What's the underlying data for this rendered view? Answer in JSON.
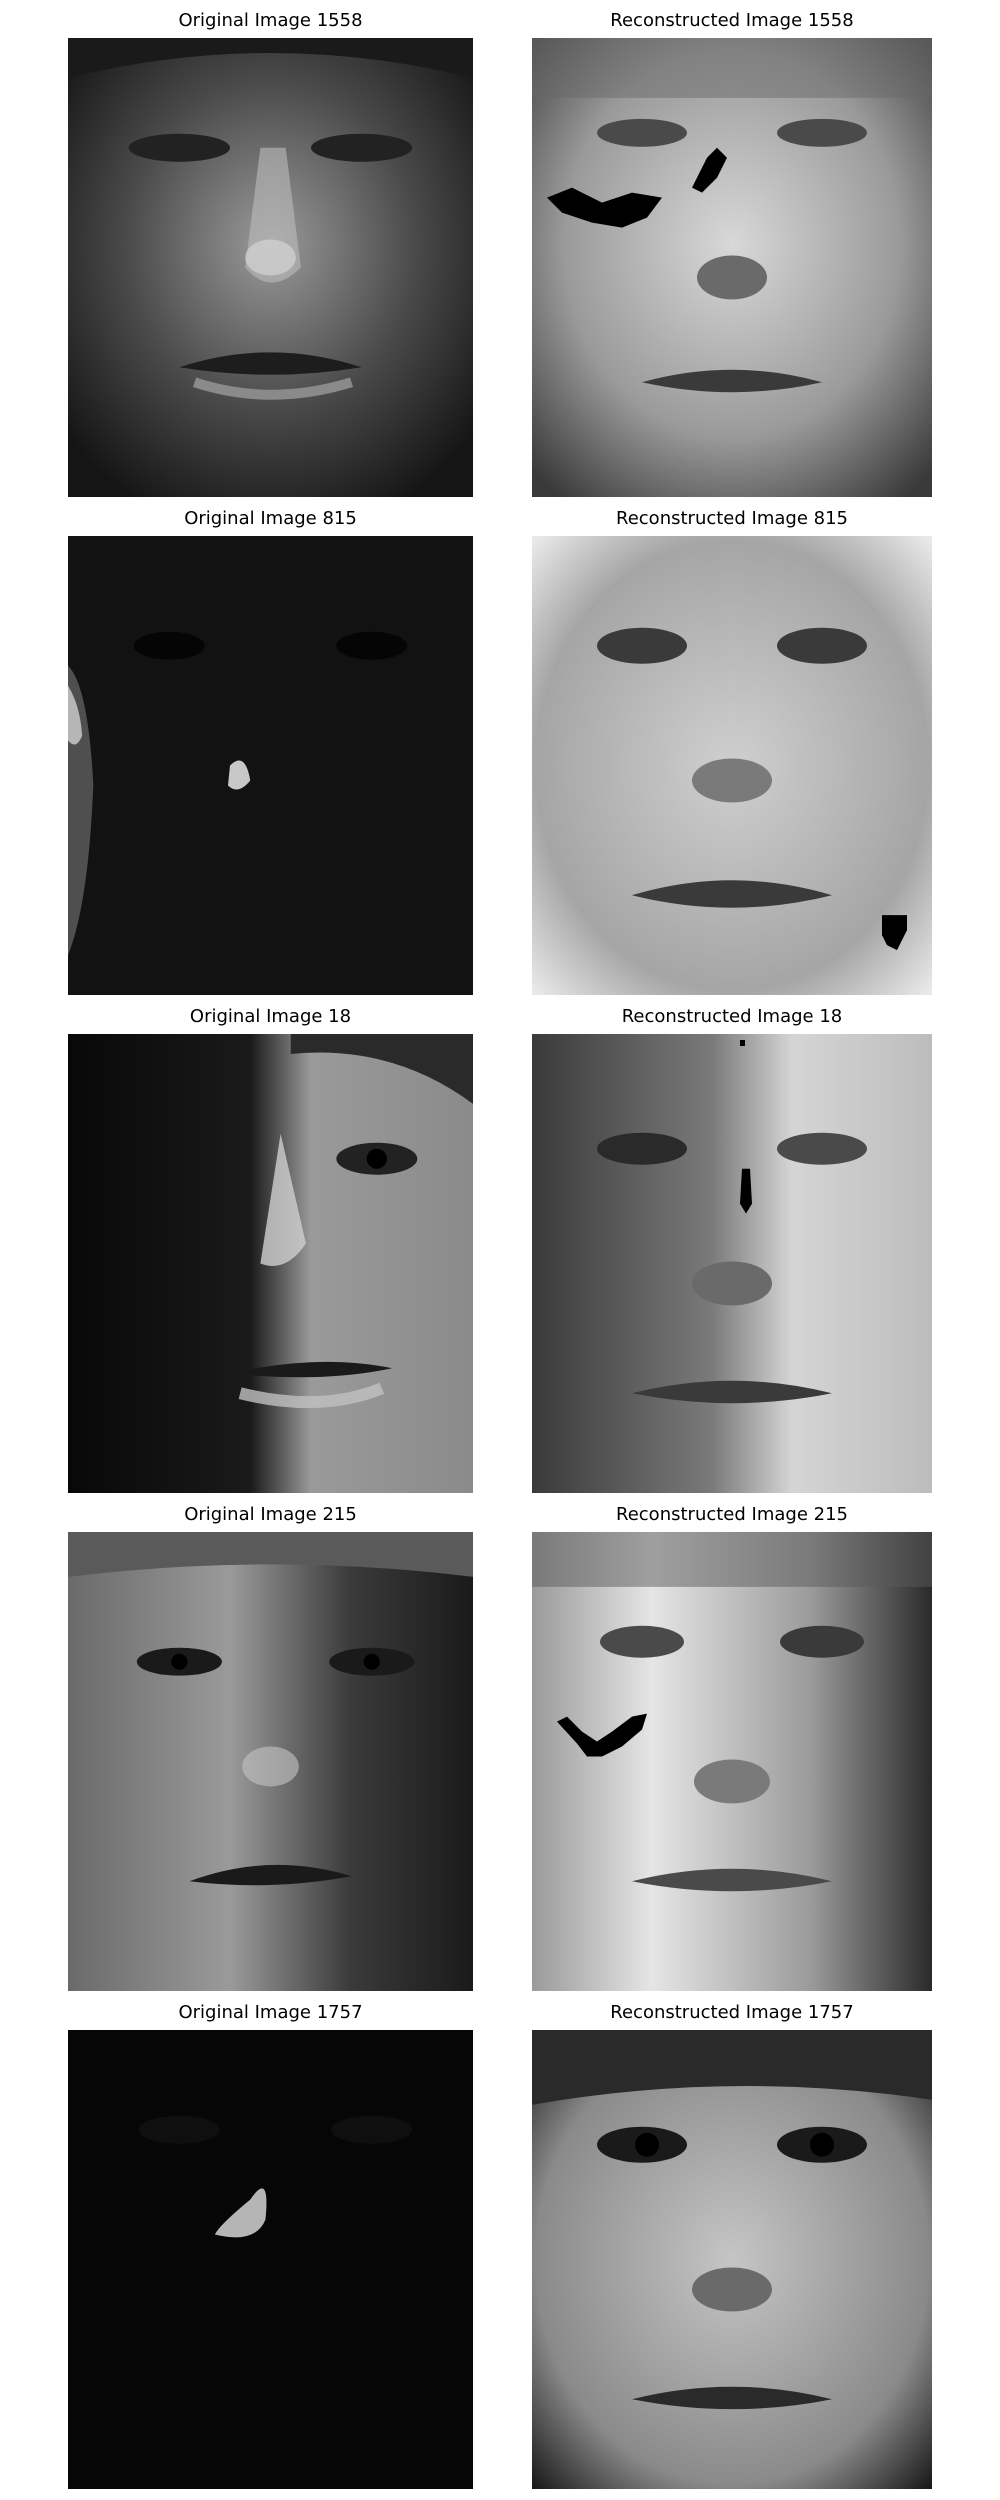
{
  "panels": [
    {
      "title": "Original Image 1558",
      "kind": "original",
      "brightness": 0.45
    },
    {
      "title": "Reconstructed Image 1558",
      "kind": "reconstructed",
      "brightness": 0.7
    },
    {
      "title": "Original Image 815",
      "kind": "original",
      "brightness": 0.12
    },
    {
      "title": "Reconstructed Image 815",
      "kind": "reconstructed",
      "brightness": 0.75
    },
    {
      "title": "Original Image 18",
      "kind": "original",
      "brightness": 0.35
    },
    {
      "title": "Reconstructed Image 18",
      "kind": "reconstructed",
      "brightness": 0.65
    },
    {
      "title": "Original Image 215",
      "kind": "original",
      "brightness": 0.5
    },
    {
      "title": "Reconstructed Image 215",
      "kind": "reconstructed",
      "brightness": 0.7
    },
    {
      "title": "Original Image 1757",
      "kind": "original",
      "brightness": 0.05
    },
    {
      "title": "Reconstructed Image 1757",
      "kind": "reconstructed",
      "brightness": 0.6
    }
  ]
}
